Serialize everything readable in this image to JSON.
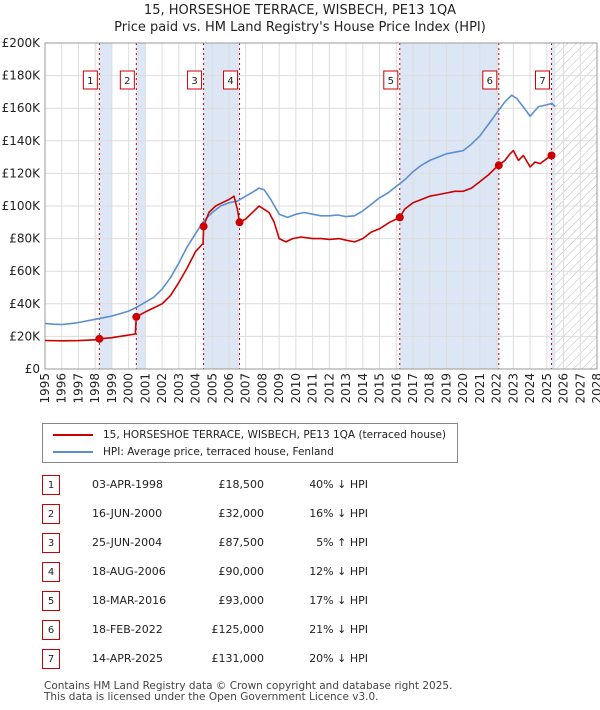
{
  "page": {
    "title_line1": "15, HORSESHOE TERRACE, WISBECH, PE13 1QA",
    "title_line2": "Price paid vs. HM Land Registry's House Price Index (HPI)"
  },
  "colors": {
    "price_line": "#cc0000",
    "hpi_line": "#5b8fd0",
    "shade": "#dde6f5",
    "marker_border": "#cc0000",
    "grid": "#dddddd"
  },
  "chart_data": {
    "type": "line",
    "xlim": [
      1995,
      2028
    ],
    "ylim": [
      0,
      200000
    ],
    "x_ticks": [
      "1995",
      "1996",
      "1997",
      "1998",
      "1999",
      "2000",
      "2001",
      "2002",
      "2003",
      "2004",
      "2005",
      "2006",
      "2007",
      "2008",
      "2009",
      "2010",
      "2011",
      "2012",
      "2013",
      "2014",
      "2015",
      "2016",
      "2017",
      "2018",
      "2019",
      "2020",
      "2021",
      "2022",
      "2023",
      "2024",
      "2025",
      "2026",
      "2027",
      "2028"
    ],
    "y_ticks": [
      {
        "value": 0,
        "label": "£0"
      },
      {
        "value": 20000,
        "label": "£20K"
      },
      {
        "value": 40000,
        "label": "£40K"
      },
      {
        "value": 60000,
        "label": "£60K"
      },
      {
        "value": 80000,
        "label": "£80K"
      },
      {
        "value": 100000,
        "label": "£100K"
      },
      {
        "value": 120000,
        "label": "£120K"
      },
      {
        "value": 140000,
        "label": "£140K"
      },
      {
        "value": 160000,
        "label": "£160K"
      },
      {
        "value": 180000,
        "label": "£180K"
      },
      {
        "value": 200000,
        "label": "£200K"
      }
    ],
    "shaded_periods": [
      [
        1998.25,
        1999.0
      ],
      [
        2000.45,
        2001.0
      ],
      [
        2004.48,
        2006.63
      ],
      [
        2016.21,
        2022.13
      ],
      [
        2025.28,
        2025.5
      ]
    ],
    "hatched_future": [
      2025.5,
      2028
    ],
    "series": [
      {
        "name": "15, HORSESHOE TERRACE, WISBECH, PE13 1QA (terraced house)",
        "color": "#cc0000",
        "points": [
          [
            1995.0,
            17500
          ],
          [
            1996.0,
            17300
          ],
          [
            1997.0,
            17400
          ],
          [
            1998.0,
            17900
          ],
          [
            1998.25,
            18500
          ],
          [
            1999.0,
            19200
          ],
          [
            1999.8,
            20500
          ],
          [
            2000.4,
            21500
          ],
          [
            2000.46,
            32000
          ],
          [
            2001.0,
            35000
          ],
          [
            2001.5,
            37500
          ],
          [
            2002.0,
            40000
          ],
          [
            2002.5,
            45000
          ],
          [
            2003.0,
            53000
          ],
          [
            2003.5,
            62000
          ],
          [
            2004.0,
            72000
          ],
          [
            2004.45,
            77000
          ],
          [
            2004.48,
            87500
          ],
          [
            2004.8,
            96000
          ],
          [
            2005.2,
            100000
          ],
          [
            2005.6,
            102000
          ],
          [
            2006.0,
            104000
          ],
          [
            2006.3,
            106000
          ],
          [
            2006.5,
            98000
          ],
          [
            2006.63,
            90000
          ],
          [
            2007.0,
            92000
          ],
          [
            2007.5,
            97000
          ],
          [
            2007.8,
            100000
          ],
          [
            2008.1,
            98000
          ],
          [
            2008.4,
            96000
          ],
          [
            2008.7,
            90000
          ],
          [
            2009.0,
            80000
          ],
          [
            2009.4,
            78000
          ],
          [
            2009.8,
            80000
          ],
          [
            2010.3,
            81000
          ],
          [
            2011.0,
            80000
          ],
          [
            2011.5,
            80000
          ],
          [
            2012.0,
            79500
          ],
          [
            2012.6,
            80000
          ],
          [
            2013.0,
            79000
          ],
          [
            2013.5,
            78000
          ],
          [
            2014.0,
            80000
          ],
          [
            2014.5,
            84000
          ],
          [
            2015.0,
            86000
          ],
          [
            2015.6,
            90000
          ],
          [
            2016.0,
            92000
          ],
          [
            2016.21,
            93000
          ],
          [
            2016.5,
            98000
          ],
          [
            2017.0,
            102000
          ],
          [
            2017.5,
            104000
          ],
          [
            2018.0,
            106000
          ],
          [
            2018.5,
            107000
          ],
          [
            2019.0,
            108000
          ],
          [
            2019.5,
            109000
          ],
          [
            2020.0,
            109000
          ],
          [
            2020.5,
            111000
          ],
          [
            2021.0,
            115000
          ],
          [
            2021.5,
            119000
          ],
          [
            2022.0,
            124000
          ],
          [
            2022.13,
            125000
          ],
          [
            2022.5,
            128000
          ],
          [
            2022.8,
            132000
          ],
          [
            2023.0,
            134000
          ],
          [
            2023.3,
            128000
          ],
          [
            2023.6,
            131000
          ],
          [
            2024.0,
            124000
          ],
          [
            2024.3,
            127000
          ],
          [
            2024.6,
            126000
          ],
          [
            2025.0,
            129000
          ],
          [
            2025.28,
            131000
          ],
          [
            2025.45,
            130000
          ]
        ]
      },
      {
        "name": "HPI: Average price, terraced house, Fenland",
        "color": "#5b8fd0",
        "points": [
          [
            1995.0,
            28000
          ],
          [
            1995.5,
            27500
          ],
          [
            1996.0,
            27300
          ],
          [
            1996.5,
            27800
          ],
          [
            1997.0,
            28500
          ],
          [
            1997.5,
            29500
          ],
          [
            1998.0,
            30500
          ],
          [
            1998.5,
            31500
          ],
          [
            1999.0,
            32500
          ],
          [
            1999.5,
            34000
          ],
          [
            2000.0,
            35500
          ],
          [
            2000.5,
            38000
          ],
          [
            2001.0,
            41000
          ],
          [
            2001.5,
            44000
          ],
          [
            2002.0,
            49000
          ],
          [
            2002.5,
            56000
          ],
          [
            2003.0,
            65000
          ],
          [
            2003.5,
            75000
          ],
          [
            2004.0,
            83000
          ],
          [
            2004.5,
            91000
          ],
          [
            2005.0,
            96000
          ],
          [
            2005.5,
            100000
          ],
          [
            2006.0,
            102000
          ],
          [
            2006.5,
            103000
          ],
          [
            2007.0,
            106000
          ],
          [
            2007.5,
            109000
          ],
          [
            2007.8,
            111000
          ],
          [
            2008.1,
            110000
          ],
          [
            2008.5,
            104000
          ],
          [
            2009.0,
            95000
          ],
          [
            2009.5,
            93000
          ],
          [
            2010.0,
            95000
          ],
          [
            2010.5,
            96000
          ],
          [
            2011.0,
            95000
          ],
          [
            2011.5,
            94000
          ],
          [
            2012.0,
            94000
          ],
          [
            2012.5,
            94500
          ],
          [
            2013.0,
            93500
          ],
          [
            2013.5,
            94000
          ],
          [
            2014.0,
            97000
          ],
          [
            2014.5,
            101000
          ],
          [
            2015.0,
            105000
          ],
          [
            2015.5,
            108000
          ],
          [
            2016.0,
            112000
          ],
          [
            2016.5,
            116000
          ],
          [
            2017.0,
            121000
          ],
          [
            2017.5,
            125000
          ],
          [
            2018.0,
            128000
          ],
          [
            2018.5,
            130000
          ],
          [
            2019.0,
            132000
          ],
          [
            2019.5,
            133000
          ],
          [
            2020.0,
            134000
          ],
          [
            2020.5,
            138000
          ],
          [
            2021.0,
            143000
          ],
          [
            2021.5,
            150000
          ],
          [
            2022.0,
            157000
          ],
          [
            2022.5,
            164000
          ],
          [
            2022.9,
            168000
          ],
          [
            2023.2,
            166000
          ],
          [
            2023.5,
            162000
          ],
          [
            2023.8,
            158000
          ],
          [
            2024.0,
            155000
          ],
          [
            2024.5,
            161000
          ],
          [
            2025.0,
            162000
          ],
          [
            2025.3,
            163000
          ],
          [
            2025.5,
            161000
          ]
        ]
      }
    ],
    "transactions": [
      {
        "label": "1",
        "x": 1998.25,
        "price": 18500
      },
      {
        "label": "2",
        "x": 2000.46,
        "price": 32000
      },
      {
        "label": "3",
        "x": 2004.48,
        "price": 87500
      },
      {
        "label": "4",
        "x": 2006.63,
        "price": 90000
      },
      {
        "label": "5",
        "x": 2016.21,
        "price": 93000
      },
      {
        "label": "6",
        "x": 2022.13,
        "price": 125000
      },
      {
        "label": "7",
        "x": 2025.28,
        "price": 131000
      }
    ]
  },
  "legend": {
    "price_label": "15, HORSESHOE TERRACE, WISBECH, PE13 1QA (terraced house)",
    "hpi_label": "HPI: Average price, terraced house, Fenland"
  },
  "table": {
    "rows": [
      {
        "num": "1",
        "date": "03-APR-1998",
        "price": "£18,500",
        "hpi": "40% ↓ HPI"
      },
      {
        "num": "2",
        "date": "16-JUN-2000",
        "price": "£32,000",
        "hpi": "16% ↓ HPI"
      },
      {
        "num": "3",
        "date": "25-JUN-2004",
        "price": "£87,500",
        "hpi": "5% ↑ HPI"
      },
      {
        "num": "4",
        "date": "18-AUG-2006",
        "price": "£90,000",
        "hpi": "12% ↓ HPI"
      },
      {
        "num": "5",
        "date": "18-MAR-2016",
        "price": "£93,000",
        "hpi": "17% ↓ HPI"
      },
      {
        "num": "6",
        "date": "18-FEB-2022",
        "price": "£125,000",
        "hpi": "21% ↓ HPI"
      },
      {
        "num": "7",
        "date": "14-APR-2025",
        "price": "£131,000",
        "hpi": "20% ↓ HPI"
      }
    ]
  },
  "footer": {
    "line1": "Contains HM Land Registry data © Crown copyright and database right 2025.",
    "line2": "This data is licensed under the Open Government Licence v3.0."
  }
}
